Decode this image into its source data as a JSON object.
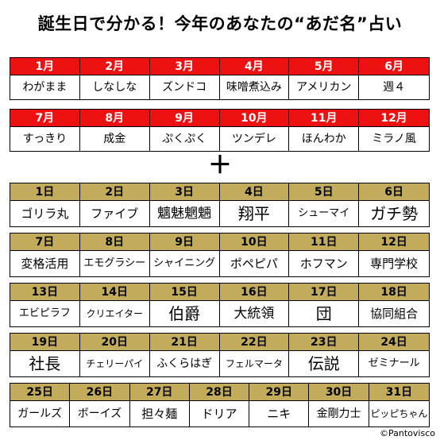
{
  "title": "誕生日で分かる！今年のあなたの“あだ名”占い",
  "plus": "＋",
  "credit": "©Pantovisco",
  "colors": {
    "month_header": "#ee1111",
    "day_header": "#c2ac5b"
  },
  "months": [
    {
      "label": "1月",
      "value": "わがまま"
    },
    {
      "label": "2月",
      "value": "しなしな"
    },
    {
      "label": "3月",
      "value": "ズンドコ"
    },
    {
      "label": "4月",
      "value": "味噌煮込み"
    },
    {
      "label": "5月",
      "value": "アメリカン"
    },
    {
      "label": "6月",
      "value": "週４"
    },
    {
      "label": "7月",
      "value": "すっきり"
    },
    {
      "label": "8月",
      "value": "成金"
    },
    {
      "label": "9月",
      "value": "ぷくぷく"
    },
    {
      "label": "10月",
      "value": "ツンデレ"
    },
    {
      "label": "11月",
      "value": "ほんわか"
    },
    {
      "label": "12月",
      "value": "ミラノ風"
    }
  ],
  "days": [
    {
      "label": "1日",
      "value": "ゴリラ丸"
    },
    {
      "label": "2日",
      "value": "ファイブ"
    },
    {
      "label": "3日",
      "value": "魑魅魍魎"
    },
    {
      "label": "4日",
      "value": "翔平"
    },
    {
      "label": "5日",
      "value": "シューマイ"
    },
    {
      "label": "6日",
      "value": "ガチ勢"
    },
    {
      "label": "7日",
      "value": "変格活用"
    },
    {
      "label": "8日",
      "value": "エモグラシー"
    },
    {
      "label": "9日",
      "value": "シャイニング"
    },
    {
      "label": "10日",
      "value": "ポペピパ"
    },
    {
      "label": "11日",
      "value": "ホフマン"
    },
    {
      "label": "12日",
      "value": "専門学校"
    },
    {
      "label": "13日",
      "value": "エビピラフ"
    },
    {
      "label": "14日",
      "value": "クリエイター"
    },
    {
      "label": "15日",
      "value": "伯爵"
    },
    {
      "label": "16日",
      "value": "大統領"
    },
    {
      "label": "17日",
      "value": "団"
    },
    {
      "label": "18日",
      "value": "協同組合"
    },
    {
      "label": "19日",
      "value": "社長"
    },
    {
      "label": "20日",
      "value": "チェリーパイ"
    },
    {
      "label": "21日",
      "value": "ふくらはぎ"
    },
    {
      "label": "22日",
      "value": "フェルマータ"
    },
    {
      "label": "23日",
      "value": "伝説"
    },
    {
      "label": "24日",
      "value": "ゼミナール"
    },
    {
      "label": "25日",
      "value": "ガールズ"
    },
    {
      "label": "26日",
      "value": "ボーイズ"
    },
    {
      "label": "27日",
      "value": "担々麺"
    },
    {
      "label": "28日",
      "value": "ドリア"
    },
    {
      "label": "29日",
      "value": "ニキ"
    },
    {
      "label": "30日",
      "value": "金剛力士"
    },
    {
      "label": "31日",
      "value": "ピッピちゃん"
    }
  ]
}
